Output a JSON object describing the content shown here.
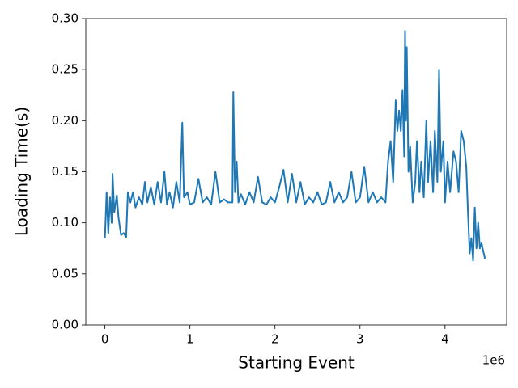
{
  "chart_data": {
    "type": "line",
    "xlabel": "Starting Event",
    "ylabel": "Loading Time(s)",
    "x_offset_text": "1e6",
    "x": [
      0,
      20000,
      40000,
      60000,
      80000,
      90000,
      110000,
      140000,
      160000,
      190000,
      220000,
      250000,
      270000,
      300000,
      330000,
      360000,
      400000,
      440000,
      470000,
      500000,
      540000,
      580000,
      620000,
      660000,
      700000,
      730000,
      760000,
      800000,
      840000,
      880000,
      910000,
      930000,
      970000,
      1000000,
      1050000,
      1100000,
      1150000,
      1200000,
      1250000,
      1300000,
      1350000,
      1400000,
      1450000,
      1500000,
      1510000,
      1530000,
      1550000,
      1570000,
      1600000,
      1650000,
      1700000,
      1750000,
      1800000,
      1850000,
      1900000,
      1950000,
      2000000,
      2050000,
      2100000,
      2150000,
      2200000,
      2250000,
      2300000,
      2350000,
      2400000,
      2450000,
      2500000,
      2550000,
      2600000,
      2650000,
      2700000,
      2750000,
      2800000,
      2850000,
      2900000,
      2950000,
      3000000,
      3050000,
      3100000,
      3150000,
      3200000,
      3250000,
      3300000,
      3330000,
      3360000,
      3390000,
      3420000,
      3440000,
      3460000,
      3480000,
      3500000,
      3520000,
      3530000,
      3540000,
      3550000,
      3570000,
      3590000,
      3620000,
      3650000,
      3670000,
      3700000,
      3720000,
      3750000,
      3780000,
      3800000,
      3830000,
      3860000,
      3880000,
      3910000,
      3930000,
      3950000,
      3980000,
      4000000,
      4030000,
      4060000,
      4100000,
      4130000,
      4160000,
      4190000,
      4220000,
      4250000,
      4270000,
      4290000,
      4310000,
      4330000,
      4350000,
      4370000,
      4390000,
      4410000,
      4430000,
      4450000,
      4470000
    ],
    "series": [
      {
        "color": "#1f77b4",
        "values": [
          0.085,
          0.13,
          0.09,
          0.125,
          0.1,
          0.148,
          0.11,
          0.127,
          0.105,
          0.088,
          0.09,
          0.086,
          0.13,
          0.12,
          0.13,
          0.115,
          0.125,
          0.118,
          0.14,
          0.12,
          0.135,
          0.118,
          0.14,
          0.12,
          0.15,
          0.118,
          0.13,
          0.115,
          0.14,
          0.12,
          0.198,
          0.125,
          0.13,
          0.118,
          0.12,
          0.143,
          0.12,
          0.125,
          0.118,
          0.15,
          0.12,
          0.123,
          0.12,
          0.12,
          0.228,
          0.13,
          0.16,
          0.12,
          0.128,
          0.118,
          0.13,
          0.12,
          0.145,
          0.12,
          0.118,
          0.125,
          0.12,
          0.135,
          0.152,
          0.12,
          0.148,
          0.12,
          0.14,
          0.118,
          0.125,
          0.12,
          0.13,
          0.118,
          0.12,
          0.14,
          0.12,
          0.13,
          0.12,
          0.125,
          0.15,
          0.12,
          0.125,
          0.155,
          0.12,
          0.13,
          0.12,
          0.125,
          0.12,
          0.16,
          0.18,
          0.14,
          0.22,
          0.19,
          0.21,
          0.19,
          0.23,
          0.165,
          0.288,
          0.2,
          0.272,
          0.15,
          0.175,
          0.12,
          0.14,
          0.18,
          0.13,
          0.16,
          0.125,
          0.2,
          0.14,
          0.18,
          0.13,
          0.19,
          0.14,
          0.25,
          0.15,
          0.18,
          0.12,
          0.16,
          0.13,
          0.17,
          0.16,
          0.13,
          0.19,
          0.18,
          0.155,
          0.11,
          0.07,
          0.085,
          0.063,
          0.115,
          0.075,
          0.1,
          0.075,
          0.08,
          0.072,
          0.065
        ]
      }
    ],
    "xlim": [
      -225000,
      4725000
    ],
    "xticks": [
      {
        "value": 0,
        "label": "0"
      },
      {
        "value": 1000000,
        "label": "1"
      },
      {
        "value": 2000000,
        "label": "2"
      },
      {
        "value": 3000000,
        "label": "3"
      },
      {
        "value": 4000000,
        "label": "4"
      }
    ],
    "ylim": [
      0,
      0.3
    ],
    "yticks": [
      {
        "value": 0,
        "label": "0.00"
      },
      0.05,
      {
        "value": 0.1,
        "label": "0.10"
      },
      0.15,
      {
        "value": 0.2,
        "label": "0.20"
      },
      0.25,
      {
        "value": 0.3,
        "label": "0.30"
      }
    ],
    "grid": false
  }
}
